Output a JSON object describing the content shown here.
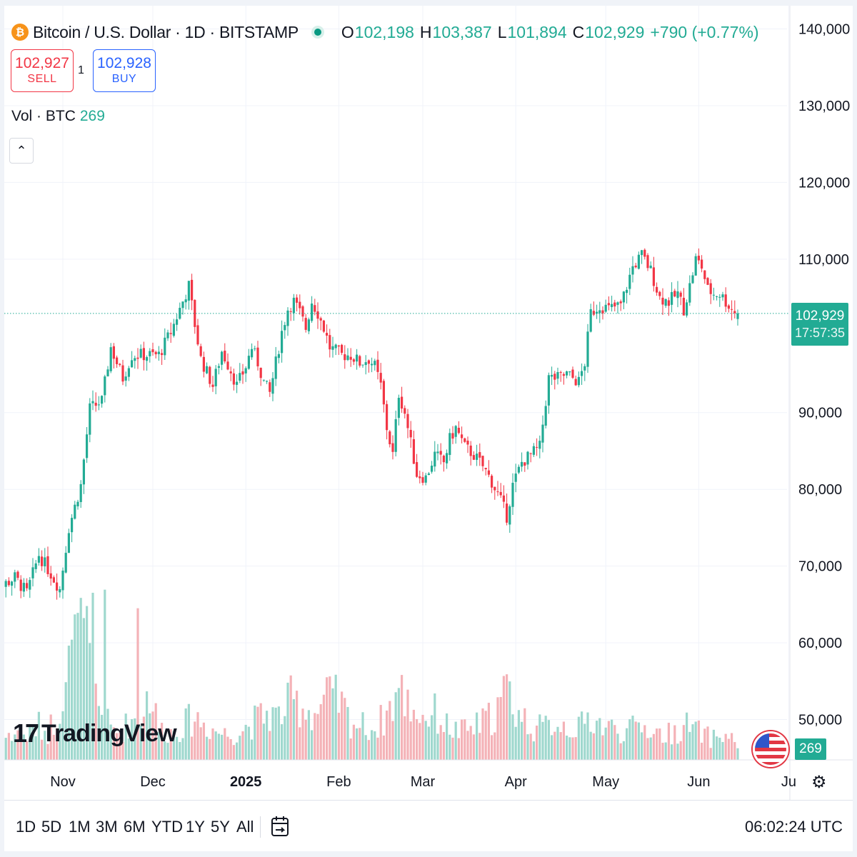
{
  "header": {
    "coin_icon": "bitcoin-icon",
    "symbol": "Bitcoin / U.S. Dollar · 1D · BITSTAMP",
    "ohlc": {
      "o_label": "O",
      "o": "102,198",
      "h_label": "H",
      "h": "103,387",
      "l_label": "L",
      "l": "101,894",
      "c_label": "C",
      "c": "102,929",
      "change": "+790 (+0.77%)"
    }
  },
  "trade": {
    "sell_price": "102,927",
    "sell_label": "SELL",
    "buy_price": "102,928",
    "buy_label": "BUY",
    "spread": "1"
  },
  "volume_legend": {
    "label": "Vol · BTC",
    "value": "269"
  },
  "logo_text": "TradingView",
  "price_tag": {
    "price": "102,929",
    "countdown": "17:57:35"
  },
  "volume_tag": "269",
  "bottom": {
    "ranges": [
      "1D",
      "5D",
      "1M",
      "3M",
      "6M",
      "YTD",
      "1Y",
      "5Y",
      "All"
    ],
    "clock": "06:02:24 UTC"
  },
  "colors": {
    "up": "#22ab94",
    "down": "#f23645",
    "up_vol": "#9fd8ce",
    "down_vol": "#f4b2b7",
    "grid": "#f0f3fa",
    "price_line": "#22ab94"
  },
  "chart_data": {
    "type": "candlestick",
    "interval": "1D",
    "y_axis": {
      "ticks": [
        140000,
        130000,
        120000,
        110000,
        90000,
        80000,
        70000,
        60000,
        50000
      ],
      "tick_labels": [
        "140,000",
        "130,000",
        "120,000",
        "110,000",
        "90,000",
        "80,000",
        "70,000",
        "60,000",
        "50,000"
      ],
      "range": [
        45000,
        143500
      ],
      "side": "right"
    },
    "x_axis": {
      "labels": [
        "Nov",
        "Dec",
        "2025",
        "Feb",
        "Mar",
        "Apr",
        "May",
        "Jun",
        "Ju"
      ],
      "label_days": [
        0,
        30,
        61,
        92,
        120,
        151,
        181,
        212,
        242
      ],
      "start_day": -25
    },
    "last_price": 102929,
    "close_path": [
      [
        -25,
        62500
      ],
      [
        -20,
        67500
      ],
      [
        -16,
        68500
      ],
      [
        -12,
        66500
      ],
      [
        -8,
        71500
      ],
      [
        -4,
        69000
      ],
      [
        -1,
        67000
      ],
      [
        2,
        75000
      ],
      [
        6,
        80500
      ],
      [
        9,
        90500
      ],
      [
        13,
        91500
      ],
      [
        16,
        98500
      ],
      [
        20,
        94500
      ],
      [
        23,
        97500
      ],
      [
        28,
        97500
      ],
      [
        32,
        97500
      ],
      [
        36,
        100500
      ],
      [
        38,
        102500
      ],
      [
        42,
        106500
      ],
      [
        44,
        101500
      ],
      [
        46,
        97000
      ],
      [
        50,
        93500
      ],
      [
        53,
        98000
      ],
      [
        56,
        95500
      ],
      [
        58,
        93500
      ],
      [
        61,
        96000
      ],
      [
        63,
        98500
      ],
      [
        65,
        96500
      ],
      [
        67,
        94000
      ],
      [
        69,
        92500
      ],
      [
        73,
        100500
      ],
      [
        75,
        103500
      ],
      [
        77,
        104500
      ],
      [
        79,
        103000
      ],
      [
        81,
        101000
      ],
      [
        83,
        104500
      ],
      [
        85,
        103000
      ],
      [
        87,
        101000
      ],
      [
        89,
        98500
      ],
      [
        93,
        97500
      ],
      [
        96,
        97500
      ],
      [
        99,
        96500
      ],
      [
        102,
        97000
      ],
      [
        104,
        96000
      ],
      [
        106,
        93500
      ],
      [
        108,
        88000
      ],
      [
        110,
        84500
      ],
      [
        112,
        92500
      ],
      [
        114,
        90000
      ],
      [
        116,
        86000
      ],
      [
        118,
        82000
      ],
      [
        121,
        81500
      ],
      [
        124,
        84500
      ],
      [
        127,
        83500
      ],
      [
        129,
        86500
      ],
      [
        131,
        88000
      ],
      [
        134,
        85500
      ],
      [
        137,
        84500
      ],
      [
        140,
        83000
      ],
      [
        143,
        81000
      ],
      [
        146,
        78500
      ],
      [
        148,
        76500
      ],
      [
        150,
        80500
      ],
      [
        153,
        83500
      ],
      [
        156,
        84500
      ],
      [
        159,
        85500
      ],
      [
        162,
        94500
      ],
      [
        165,
        94500
      ],
      [
        168,
        95000
      ],
      [
        172,
        94000
      ],
      [
        174,
        96500
      ],
      [
        176,
        103000
      ],
      [
        179,
        104000
      ],
      [
        182,
        103500
      ],
      [
        186,
        104000
      ],
      [
        190,
        109000
      ],
      [
        193,
        110500
      ],
      [
        196,
        108500
      ],
      [
        199,
        105000
      ],
      [
        202,
        104500
      ],
      [
        205,
        105500
      ],
      [
        207,
        103500
      ],
      [
        209,
        106500
      ],
      [
        211,
        110000
      ],
      [
        213,
        109000
      ],
      [
        215,
        106000
      ],
      [
        217,
        105500
      ],
      [
        219,
        105500
      ],
      [
        221,
        104500
      ],
      [
        223,
        103500
      ],
      [
        225,
        102900
      ]
    ],
    "volume_path": [
      [
        -25,
        12
      ],
      [
        -22,
        18
      ],
      [
        -18,
        14
      ],
      [
        -15,
        20
      ],
      [
        -12,
        16
      ],
      [
        -8,
        22
      ],
      [
        -5,
        18
      ],
      [
        -2,
        30
      ],
      [
        1,
        55
      ],
      [
        4,
        70
      ],
      [
        7,
        80
      ],
      [
        10,
        50
      ],
      [
        13,
        30
      ],
      [
        16,
        20
      ],
      [
        19,
        18
      ],
      [
        22,
        24
      ],
      [
        26,
        30
      ],
      [
        29,
        45
      ],
      [
        32,
        20
      ],
      [
        36,
        18
      ],
      [
        40,
        22
      ],
      [
        44,
        28
      ],
      [
        48,
        22
      ],
      [
        52,
        18
      ],
      [
        56,
        16
      ],
      [
        60,
        20
      ],
      [
        64,
        25
      ],
      [
        68,
        30
      ],
      [
        72,
        28
      ],
      [
        76,
        38
      ],
      [
        80,
        35
      ],
      [
        84,
        30
      ],
      [
        88,
        40
      ],
      [
        92,
        38
      ],
      [
        96,
        25
      ],
      [
        100,
        22
      ],
      [
        104,
        20
      ],
      [
        108,
        30
      ],
      [
        112,
        45
      ],
      [
        116,
        35
      ],
      [
        120,
        28
      ],
      [
        124,
        30
      ],
      [
        128,
        22
      ],
      [
        132,
        18
      ],
      [
        136,
        20
      ],
      [
        140,
        24
      ],
      [
        144,
        30
      ],
      [
        148,
        45
      ],
      [
        152,
        30
      ],
      [
        156,
        22
      ],
      [
        160,
        20
      ],
      [
        164,
        25
      ],
      [
        168,
        22
      ],
      [
        172,
        20
      ],
      [
        176,
        28
      ],
      [
        180,
        22
      ],
      [
        184,
        20
      ],
      [
        188,
        18
      ],
      [
        192,
        22
      ],
      [
        196,
        20
      ],
      [
        200,
        16
      ],
      [
        204,
        18
      ],
      [
        208,
        22
      ],
      [
        212,
        18
      ],
      [
        216,
        14
      ],
      [
        220,
        16
      ],
      [
        225,
        12
      ]
    ],
    "volume_spikes": [
      [
        5,
        95
      ],
      [
        10,
        108
      ],
      [
        14,
        110
      ],
      [
        25,
        98
      ]
    ],
    "volume_scale_max": 120
  }
}
